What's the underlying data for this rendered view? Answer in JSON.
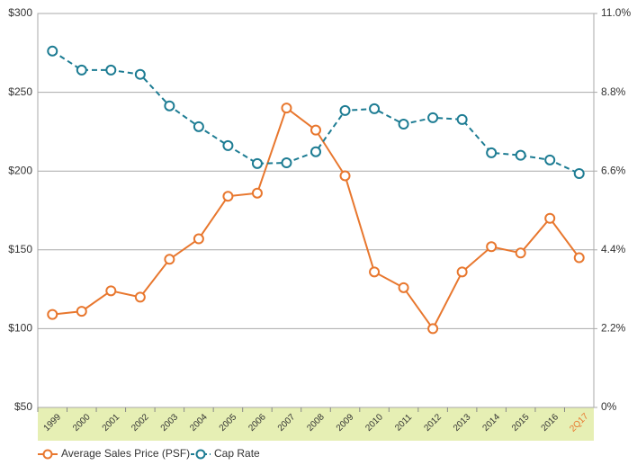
{
  "chart_data": {
    "type": "line",
    "categories": [
      "1999",
      "2000",
      "2001",
      "2002",
      "2003",
      "2004",
      "2005",
      "2006",
      "2007",
      "2008",
      "2009",
      "2010",
      "2011",
      "2012",
      "2013",
      "2014",
      "2015",
      "2016",
      "2Q17"
    ],
    "series": [
      {
        "name": "Average Sales Price (PSF)",
        "color": "#e8772e",
        "dashed": false,
        "values": [
          109,
          111,
          124,
          120,
          144,
          157,
          184,
          186,
          240,
          226,
          197,
          136,
          126,
          100,
          136,
          152,
          148,
          170,
          145
        ]
      },
      {
        "name": "Cap Rate",
        "color": "#1d7c93",
        "dashed": true,
        "axis": "y2",
        "values": [
          9.95,
          9.42,
          9.42,
          9.3,
          8.42,
          7.84,
          7.31,
          6.81,
          6.83,
          7.14,
          8.29,
          8.34,
          7.91,
          8.09,
          8.04,
          7.11,
          7.04,
          6.91,
          6.53
        ]
      }
    ],
    "ylim": [
      50,
      300
    ],
    "yticks": [
      {
        "value": 50,
        "label": "$50"
      },
      {
        "value": 100,
        "label": "$100"
      },
      {
        "value": 150,
        "label": "$150"
      },
      {
        "value": 200,
        "label": "$200"
      },
      {
        "value": 250,
        "label": "$250"
      },
      {
        "value": 300,
        "label": "$300"
      }
    ],
    "y2lim": [
      0,
      11
    ],
    "y2ticks": [
      {
        "value": 0,
        "label": "0%"
      },
      {
        "value": 2.2,
        "label": "2.2%"
      },
      {
        "value": 4.4,
        "label": "4.4%"
      },
      {
        "value": 6.6,
        "label": "6.6%"
      },
      {
        "value": 8.8,
        "label": "8.8%"
      },
      {
        "value": 11,
        "label": "11.0%"
      }
    ],
    "grid": true,
    "category_band_color": "#e6efb4",
    "last_category_color": "#e8772e",
    "legend": "bottom-left"
  }
}
